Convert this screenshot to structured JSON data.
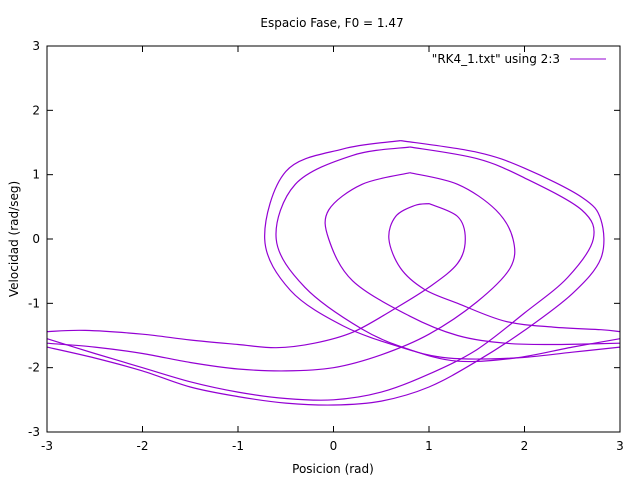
{
  "chart_data": {
    "type": "line",
    "title": "Espacio Fase, F0 = 1.47",
    "xlabel": "Posicion (rad)",
    "ylabel": "Velocidad (rad/seg)",
    "xlim": [
      -3,
      3
    ],
    "ylim": [
      -3,
      3
    ],
    "xticks": [
      -3,
      -2,
      -1,
      0,
      1,
      2,
      3
    ],
    "yticks": [
      -3,
      -2,
      -1,
      0,
      1,
      2,
      3
    ],
    "grid": false,
    "legend_position": "top-right",
    "series": [
      {
        "name": "\"RK4_1.txt\" using 2:3",
        "color": "#9400d3",
        "curves": [
          [
            [
              1.0,
              0.55
            ],
            [
              0.85,
              0.52
            ],
            [
              0.65,
              0.35
            ],
            [
              0.58,
              0.0
            ],
            [
              0.7,
              -0.45
            ],
            [
              0.95,
              -0.78
            ],
            [
              1.3,
              -1.0
            ],
            [
              1.8,
              -1.28
            ],
            [
              2.3,
              -1.37
            ],
            [
              2.8,
              -1.41
            ],
            [
              3.0,
              -1.44
            ]
          ],
          [
            [
              -3.0,
              -1.44
            ],
            [
              -2.6,
              -1.42
            ],
            [
              -2.0,
              -1.48
            ],
            [
              -1.5,
              -1.57
            ],
            [
              -1.0,
              -1.64
            ],
            [
              -0.6,
              -1.69
            ],
            [
              -0.2,
              -1.62
            ],
            [
              0.2,
              -1.45
            ],
            [
              0.6,
              -1.12
            ],
            [
              1.0,
              -0.75
            ],
            [
              1.3,
              -0.38
            ],
            [
              1.38,
              0.0
            ],
            [
              1.3,
              0.35
            ],
            [
              1.0,
              0.55
            ]
          ],
          [
            [
              0.8,
              1.03
            ],
            [
              0.3,
              0.85
            ],
            [
              -0.05,
              0.45
            ],
            [
              -0.05,
              0.0
            ],
            [
              0.2,
              -0.65
            ],
            [
              0.8,
              -1.2
            ],
            [
              1.3,
              -1.5
            ],
            [
              1.8,
              -1.62
            ],
            [
              2.3,
              -1.64
            ],
            [
              2.7,
              -1.63
            ],
            [
              3.0,
              -1.62
            ]
          ],
          [
            [
              -3.0,
              -1.62
            ],
            [
              -2.5,
              -1.68
            ],
            [
              -2.0,
              -1.78
            ],
            [
              -1.5,
              -1.92
            ],
            [
              -1.0,
              -2.02
            ],
            [
              -0.5,
              -2.05
            ],
            [
              0.0,
              -2.0
            ],
            [
              0.5,
              -1.8
            ],
            [
              1.0,
              -1.48
            ],
            [
              1.5,
              -0.98
            ],
            [
              1.85,
              -0.45
            ],
            [
              1.88,
              0.0
            ],
            [
              1.7,
              0.45
            ],
            [
              1.3,
              0.85
            ],
            [
              0.8,
              1.03
            ]
          ],
          [
            [
              0.8,
              1.43
            ],
            [
              0.2,
              1.3
            ],
            [
              -0.4,
              0.85
            ],
            [
              -0.6,
              0.0
            ],
            [
              -0.3,
              -0.75
            ],
            [
              0.3,
              -1.4
            ],
            [
              0.8,
              -1.72
            ],
            [
              1.3,
              -1.9
            ],
            [
              1.9,
              -1.85
            ],
            [
              2.5,
              -1.68
            ],
            [
              3.0,
              -1.55
            ]
          ],
          [
            [
              -3.0,
              -1.55
            ],
            [
              -2.5,
              -1.78
            ],
            [
              -2.0,
              -2.0
            ],
            [
              -1.5,
              -2.22
            ],
            [
              -1.0,
              -2.38
            ],
            [
              -0.5,
              -2.48
            ],
            [
              0.0,
              -2.5
            ],
            [
              0.5,
              -2.38
            ],
            [
              1.0,
              -2.1
            ],
            [
              1.5,
              -1.72
            ],
            [
              2.0,
              -1.15
            ],
            [
              2.45,
              -0.6
            ],
            [
              2.72,
              0.0
            ],
            [
              2.6,
              0.45
            ],
            [
              2.0,
              0.95
            ],
            [
              1.5,
              1.25
            ],
            [
              0.8,
              1.43
            ]
          ],
          [
            [
              0.7,
              1.53
            ],
            [
              0.1,
              1.4
            ],
            [
              -0.5,
              1.05
            ],
            [
              -0.72,
              0.0
            ],
            [
              -0.45,
              -0.8
            ],
            [
              0.1,
              -1.35
            ],
            [
              0.7,
              -1.68
            ],
            [
              1.2,
              -1.85
            ],
            [
              1.9,
              -1.85
            ],
            [
              2.5,
              -1.76
            ],
            [
              3.0,
              -1.68
            ]
          ],
          [
            [
              -3.0,
              -1.68
            ],
            [
              -2.5,
              -1.85
            ],
            [
              -2.0,
              -2.05
            ],
            [
              -1.5,
              -2.3
            ],
            [
              -1.0,
              -2.45
            ],
            [
              -0.5,
              -2.55
            ],
            [
              0.0,
              -2.58
            ],
            [
              0.5,
              -2.52
            ],
            [
              1.0,
              -2.3
            ],
            [
              1.5,
              -1.9
            ],
            [
              2.0,
              -1.42
            ],
            [
              2.5,
              -0.85
            ],
            [
              2.8,
              -0.3
            ],
            [
              2.8,
              0.3
            ],
            [
              2.6,
              0.65
            ],
            [
              2.0,
              1.1
            ],
            [
              1.5,
              1.35
            ],
            [
              0.7,
              1.53
            ]
          ]
        ]
      }
    ]
  }
}
